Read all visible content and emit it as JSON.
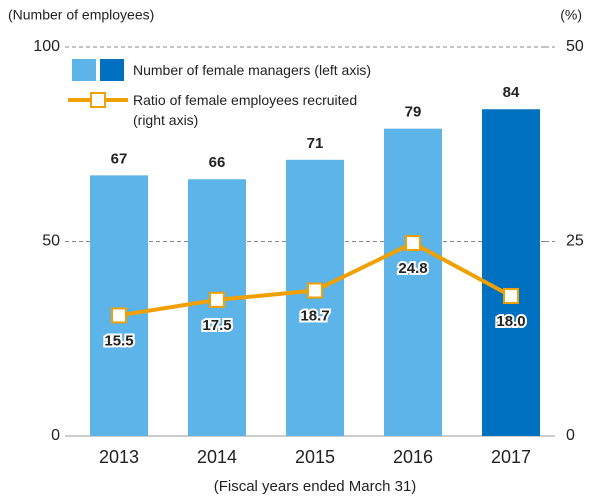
{
  "chart_data": {
    "type": "bar",
    "y_label": "(Number of employees)",
    "y2_label": "(%)",
    "x_label": "(Fiscal years ended March 31)",
    "categories": [
      "2013",
      "2014",
      "2015",
      "2016",
      "2017"
    ],
    "series": [
      {
        "name": "Number of female managers (left axis)",
        "type": "bar",
        "color": "#5cb4e8",
        "colors": [
          "#5cb4e8",
          "#5cb4e8",
          "#5cb4e8",
          "#5cb4e8",
          "#0070c0"
        ],
        "values": [
          67,
          66,
          71,
          79,
          84
        ]
      },
      {
        "name": "Ratio of female employees recruited\n(right axis)",
        "type": "line",
        "axis": "y2",
        "color": "#f0a000",
        "values": [
          15.5,
          17.5,
          18.7,
          24.8,
          18.0
        ],
        "value_labels": [
          "15.5",
          "17.5",
          "18.7",
          "24.8",
          "18.0"
        ]
      }
    ],
    "ylim": [
      0,
      100
    ],
    "yticks": [
      0,
      50,
      100
    ],
    "y2lim": [
      0,
      50
    ],
    "y2ticks": [
      0,
      25,
      50
    ],
    "grid": true
  }
}
